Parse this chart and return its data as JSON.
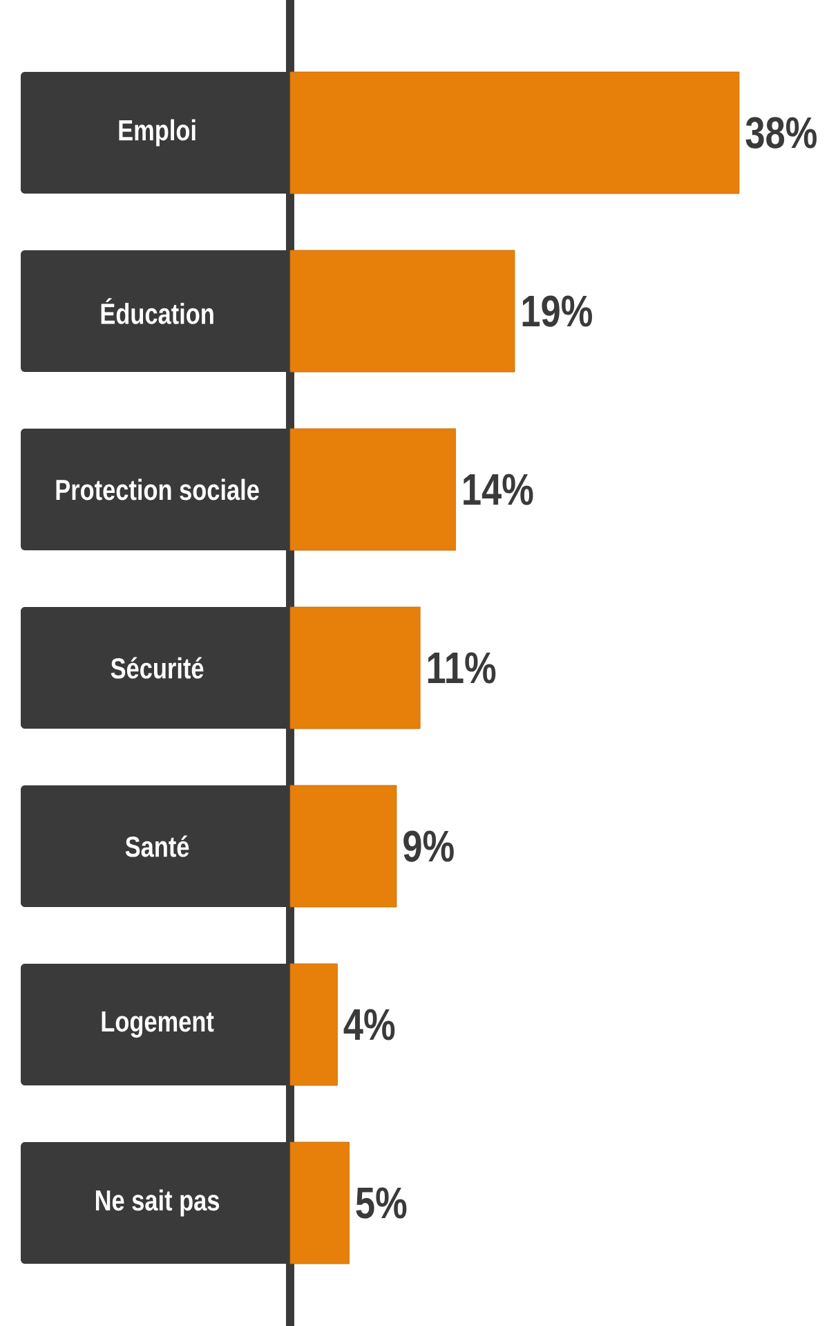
{
  "chart_data": {
    "type": "bar",
    "orientation": "horizontal",
    "categories": [
      "Emploi",
      "Éducation",
      "Protection sociale",
      "Sécurité",
      "Santé",
      "Logement",
      "Ne sait pas"
    ],
    "values": [
      38,
      19,
      14,
      11,
      9,
      4,
      5
    ],
    "value_labels": [
      "38%",
      "19%",
      "14%",
      "11%",
      "9%",
      "4%",
      "5%"
    ],
    "color": "#e77f0b"
  }
}
